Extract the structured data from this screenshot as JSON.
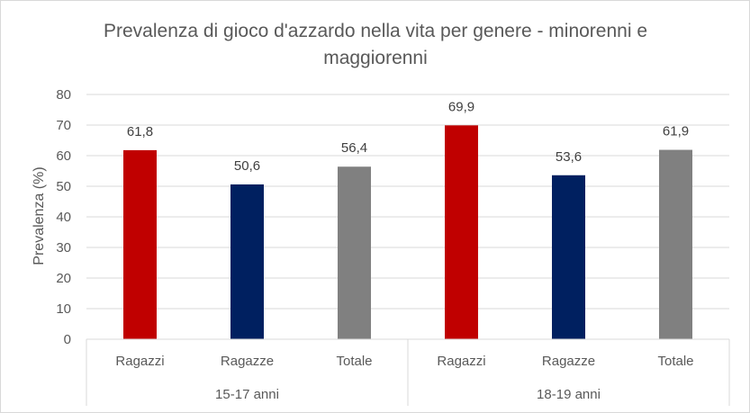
{
  "chart_data": {
    "type": "bar",
    "title_lines": [
      "Prevalenza di gioco d'azzardo nella vita per genere - minorenni e",
      "maggiorenni"
    ],
    "ylabel": "Prevalenza (%)",
    "xlabel": "",
    "ylim": [
      0,
      80
    ],
    "yticks": [
      0,
      10,
      20,
      30,
      40,
      50,
      60,
      70,
      80
    ],
    "grid": true,
    "legend": "none",
    "groups": [
      {
        "label": "15-17 anni",
        "bars": [
          {
            "category": "Ragazzi",
            "value": 61.8,
            "label": "61,8",
            "color": "#C00000"
          },
          {
            "category": "Ragazze",
            "value": 50.6,
            "label": "50,6",
            "color": "#002060"
          },
          {
            "category": "Totale",
            "value": 56.4,
            "label": "56,4",
            "color": "#808080"
          }
        ]
      },
      {
        "label": "18-19 anni",
        "bars": [
          {
            "category": "Ragazzi",
            "value": 69.9,
            "label": "69,9",
            "color": "#C00000"
          },
          {
            "category": "Ragazze",
            "value": 53.6,
            "label": "53,6",
            "color": "#002060"
          },
          {
            "category": "Totale",
            "value": 61.9,
            "label": "61,9",
            "color": "#808080"
          }
        ]
      }
    ]
  }
}
